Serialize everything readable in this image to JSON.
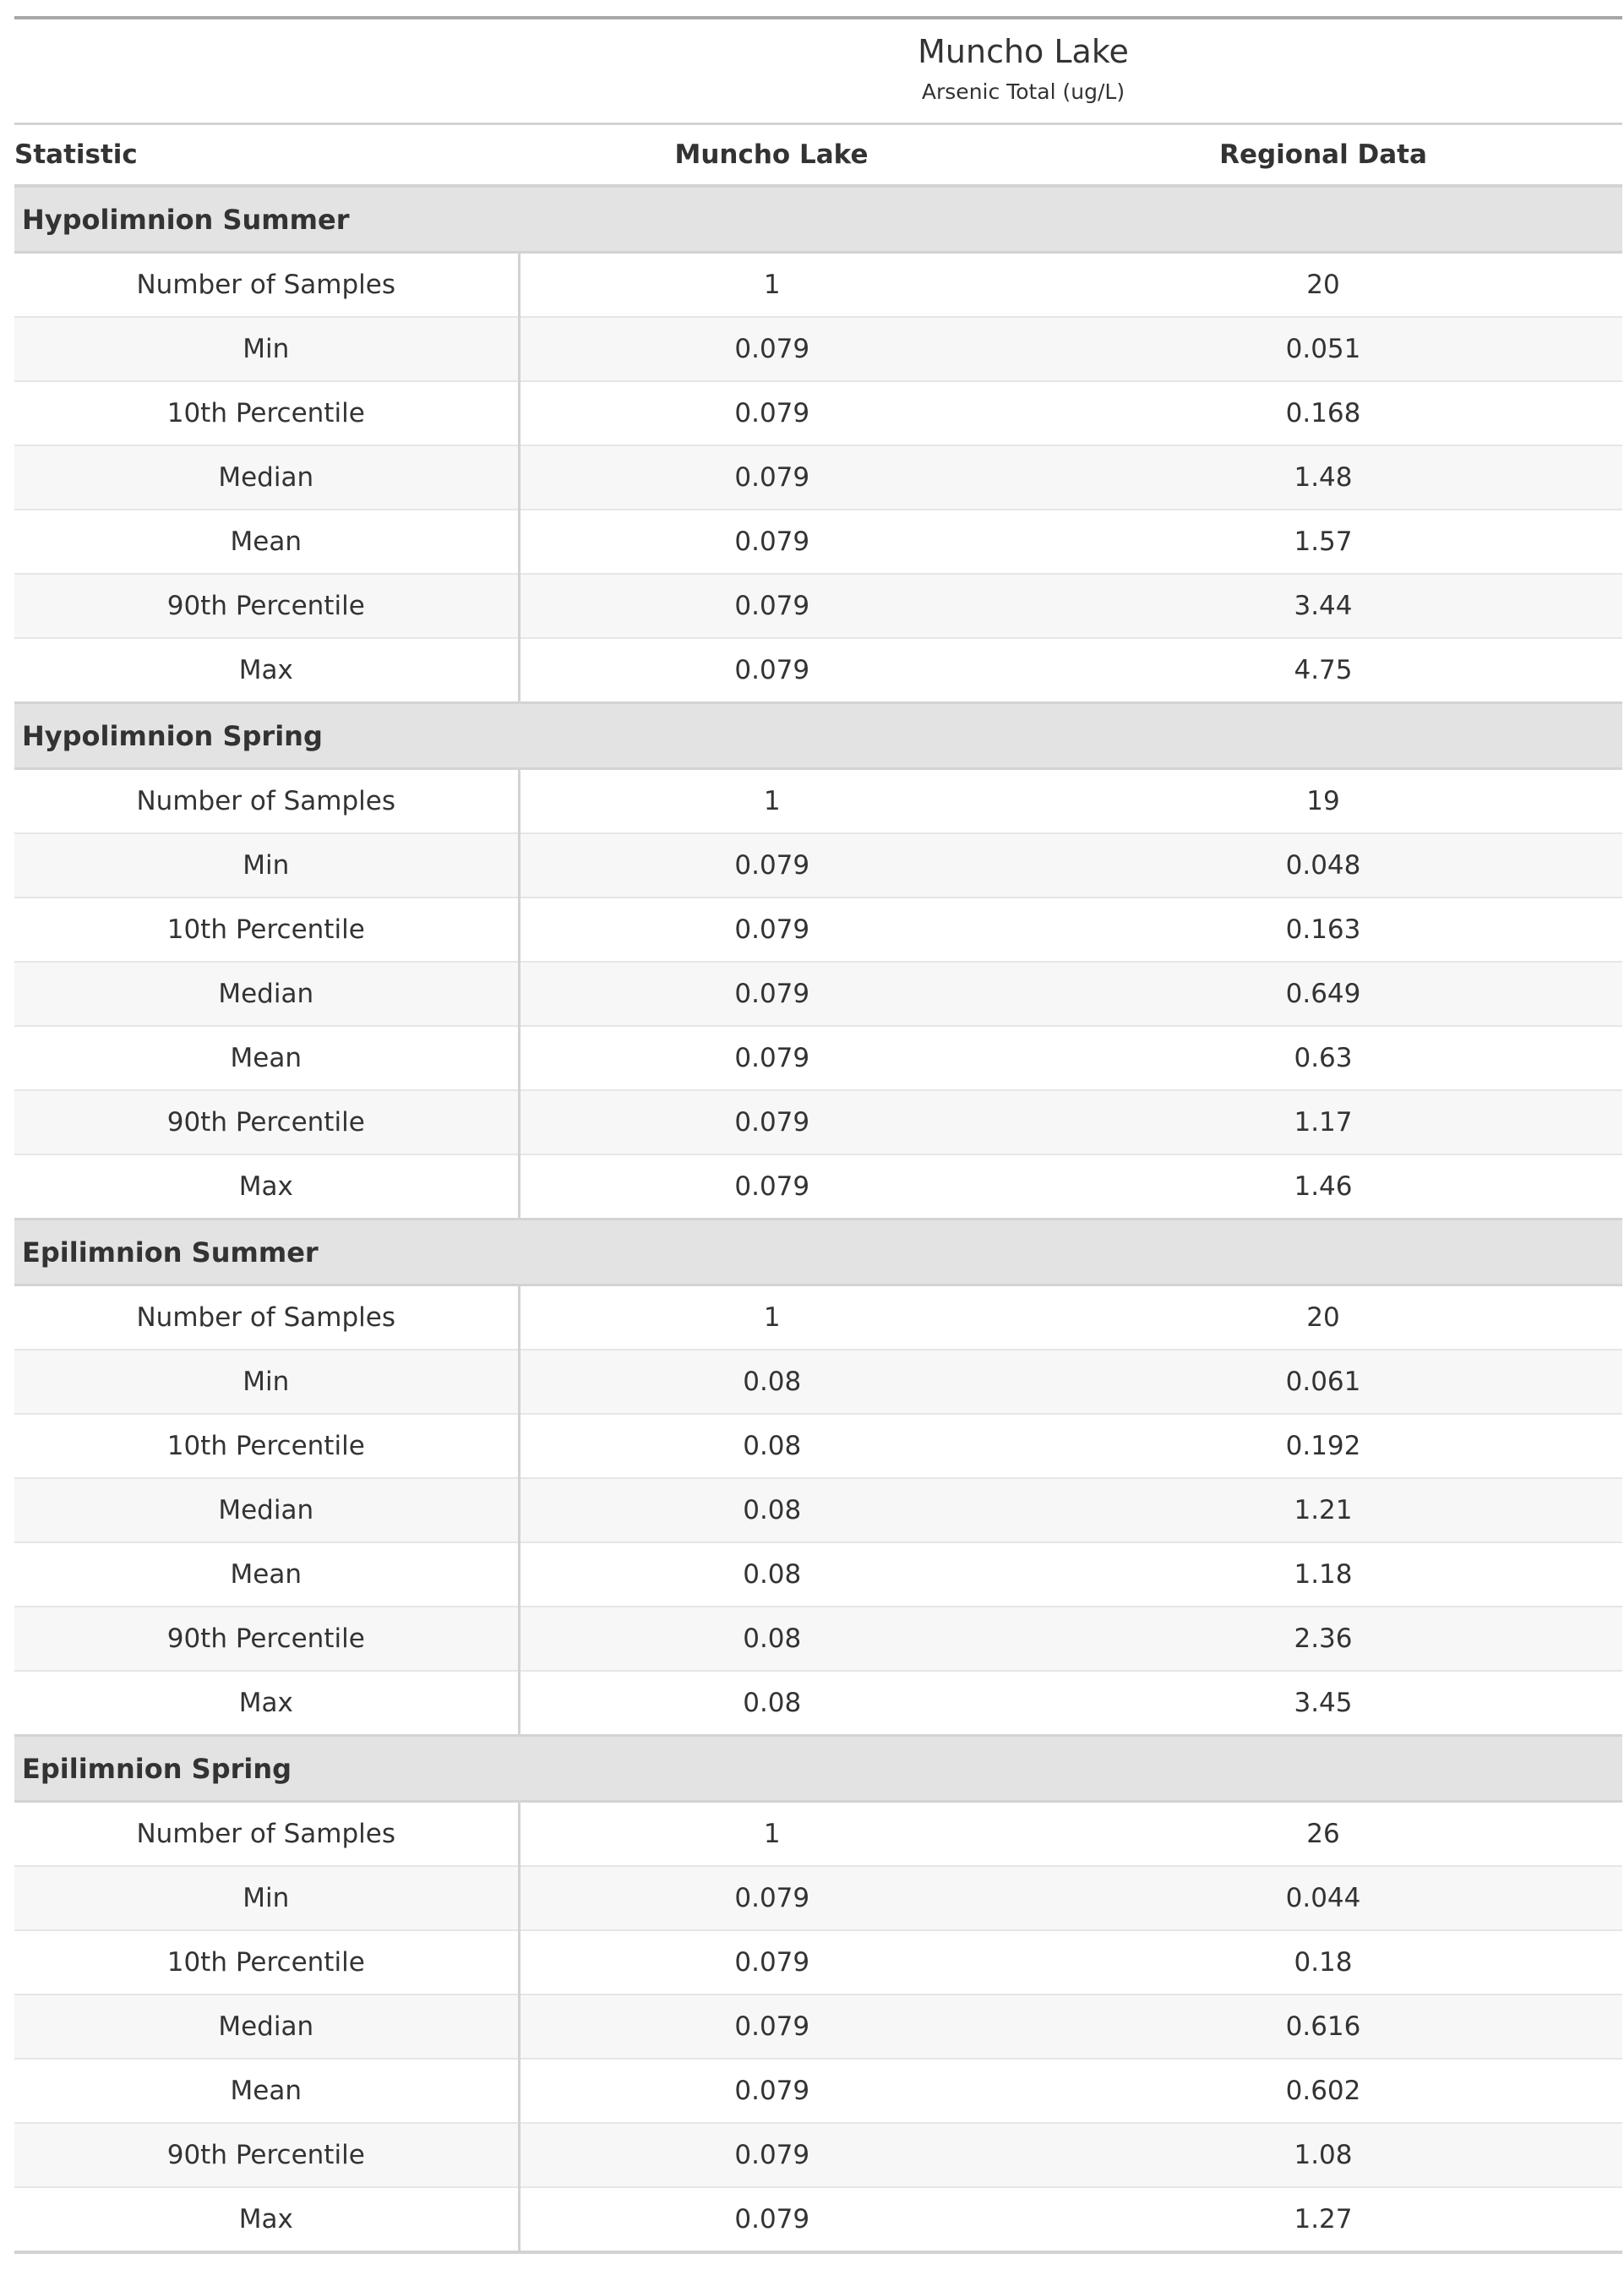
{
  "title": "Muncho Lake",
  "subtitle": "Arsenic Total (ug/L)",
  "columns": [
    "Statistic",
    "Muncho Lake",
    "Regional Data"
  ],
  "groups": [
    {
      "name": "Hypolimnion Summer",
      "rows": [
        {
          "stat": "Number of Samples",
          "lake": "1",
          "regional": "20"
        },
        {
          "stat": "Min",
          "lake": "0.079",
          "regional": "0.051"
        },
        {
          "stat": "10th Percentile",
          "lake": "0.079",
          "regional": "0.168"
        },
        {
          "stat": "Median",
          "lake": "0.079",
          "regional": "1.48"
        },
        {
          "stat": "Mean",
          "lake": "0.079",
          "regional": "1.57"
        },
        {
          "stat": "90th Percentile",
          "lake": "0.079",
          "regional": "3.44"
        },
        {
          "stat": "Max",
          "lake": "0.079",
          "regional": "4.75"
        }
      ]
    },
    {
      "name": "Hypolimnion Spring",
      "rows": [
        {
          "stat": "Number of Samples",
          "lake": "1",
          "regional": "19"
        },
        {
          "stat": "Min",
          "lake": "0.079",
          "regional": "0.048"
        },
        {
          "stat": "10th Percentile",
          "lake": "0.079",
          "regional": "0.163"
        },
        {
          "stat": "Median",
          "lake": "0.079",
          "regional": "0.649"
        },
        {
          "stat": "Mean",
          "lake": "0.079",
          "regional": "0.63"
        },
        {
          "stat": "90th Percentile",
          "lake": "0.079",
          "regional": "1.17"
        },
        {
          "stat": "Max",
          "lake": "0.079",
          "regional": "1.46"
        }
      ]
    },
    {
      "name": "Epilimnion Summer",
      "rows": [
        {
          "stat": "Number of Samples",
          "lake": "1",
          "regional": "20"
        },
        {
          "stat": "Min",
          "lake": "0.08",
          "regional": "0.061"
        },
        {
          "stat": "10th Percentile",
          "lake": "0.08",
          "regional": "0.192"
        },
        {
          "stat": "Median",
          "lake": "0.08",
          "regional": "1.21"
        },
        {
          "stat": "Mean",
          "lake": "0.08",
          "regional": "1.18"
        },
        {
          "stat": "90th Percentile",
          "lake": "0.08",
          "regional": "2.36"
        },
        {
          "stat": "Max",
          "lake": "0.08",
          "regional": "3.45"
        }
      ]
    },
    {
      "name": "Epilimnion Spring",
      "rows": [
        {
          "stat": "Number of Samples",
          "lake": "1",
          "regional": "26"
        },
        {
          "stat": "Min",
          "lake": "0.079",
          "regional": "0.044"
        },
        {
          "stat": "10th Percentile",
          "lake": "0.079",
          "regional": "0.18"
        },
        {
          "stat": "Median",
          "lake": "0.079",
          "regional": "0.616"
        },
        {
          "stat": "Mean",
          "lake": "0.079",
          "regional": "0.602"
        },
        {
          "stat": "90th Percentile",
          "lake": "0.079",
          "regional": "1.08"
        },
        {
          "stat": "Max",
          "lake": "0.079",
          "regional": "1.27"
        }
      ]
    }
  ]
}
